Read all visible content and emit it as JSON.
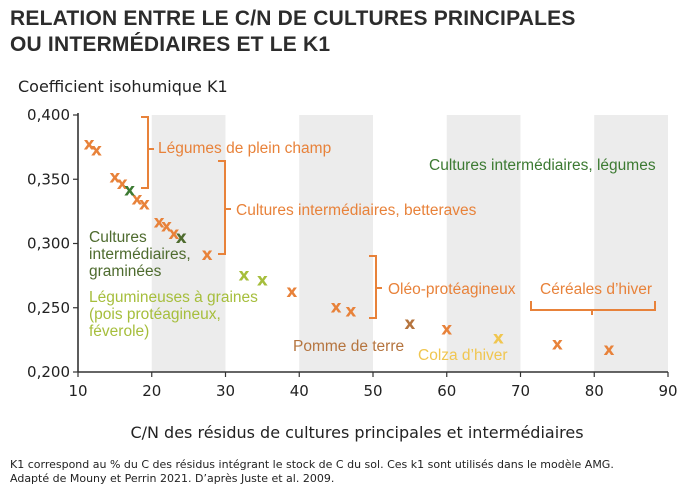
{
  "title_lines": [
    "RELATION ENTRE LE C/N DE CULTURES PRINCIPALES",
    "OU INTERMÉDIAIRES ET LE K1"
  ],
  "footnote_lines": [
    "K1 correspond au % du C des résidus intégrant le stock de C du sol. Ces k1 sont utilisés dans le modèle AMG.",
    "Adapté de Mouny et Perrin 2021. D’après Juste et al. 2009."
  ],
  "colors": {
    "legumes": "#e8823a",
    "betteraves": "#e8823a",
    "graminees": "#4e6b2e",
    "legumineuses": "#a6be3c",
    "oleo": "#e8823a",
    "pomme_de_terre": "#b5743e",
    "colza": "#f0c650",
    "cereales": "#e8823a",
    "ci_legumes": "#3c7a32",
    "band": "#ececec",
    "axis": "#333333"
  },
  "chart_data": {
    "type": "scatter",
    "xlabel": "C/N des résidus de cultures principales et intermédiaires",
    "ylabel": "Coefficient isohumique K1",
    "xlim": [
      10,
      90
    ],
    "ylim": [
      0.2,
      0.4
    ],
    "x_ticks": [
      "10",
      "20",
      "30",
      "40",
      "50",
      "60",
      "70",
      "80",
      "90"
    ],
    "y_ticks": [
      "0,200",
      "0,250",
      "0,300",
      "0,350",
      "0,400"
    ],
    "shaded_bands_x": [
      [
        20,
        30
      ],
      [
        40,
        50
      ],
      [
        60,
        70
      ],
      [
        80,
        90
      ]
    ],
    "marker_glyph": "x",
    "series": [
      {
        "name": "Légumes de plein champ",
        "color_key": "legumes",
        "points": [
          [
            11.5,
            0.378
          ],
          [
            12.5,
            0.373
          ],
          [
            15,
            0.352
          ],
          [
            16,
            0.347
          ],
          [
            18,
            0.335
          ],
          [
            19,
            0.331
          ]
        ]
      },
      {
        "name": "Cultures intermédiaires, légumes",
        "color_key": "ci_legumes",
        "points": [
          [
            17,
            0.342
          ]
        ]
      },
      {
        "name": "Cultures intermédiaires, betteraves",
        "color_key": "betteraves",
        "points": [
          [
            21,
            0.317
          ],
          [
            22,
            0.314
          ],
          [
            23,
            0.308
          ],
          [
            27.5,
            0.292
          ]
        ]
      },
      {
        "name": "Cultures intermédiaires, graminées",
        "color_key": "graminees",
        "points": [
          [
            24,
            0.305
          ]
        ]
      },
      {
        "name": "Légumineuses à graines (pois protéagineux, féverole)",
        "color_key": "legumineuses",
        "points": [
          [
            32.5,
            0.276
          ],
          [
            35,
            0.272
          ]
        ]
      },
      {
        "name": "Oléo-protéagineux",
        "color_key": "oleo",
        "points": [
          [
            39,
            0.263
          ],
          [
            45,
            0.251
          ],
          [
            47,
            0.248
          ],
          [
            60,
            0.234
          ]
        ]
      },
      {
        "name": "Pomme de terre",
        "color_key": "pomme_de_terre",
        "points": [
          [
            55,
            0.238
          ]
        ]
      },
      {
        "name": "Colza d’hiver",
        "color_key": "colza",
        "points": [
          [
            67,
            0.227
          ]
        ]
      },
      {
        "name": "Céréales d’hiver",
        "color_key": "cereales",
        "points": [
          [
            75,
            0.222
          ],
          [
            82,
            0.218
          ]
        ]
      }
    ],
    "annotations": {
      "legumes": "Légumes de plein champ",
      "ci_legumes": "Cultures intermédiaires, légumes",
      "betteraves": "Cultures intermédiaires, betteraves",
      "graminees_lines": [
        "Cultures",
        "intermédiaires,",
        "graminées"
      ],
      "legumineuses_lines": [
        "Légumineuses à graines",
        "(pois protéagineux,",
        "féverole)"
      ],
      "oleo": "Oléo-protéagineux",
      "pomme_de_terre": "Pomme de terre",
      "colza": "Colza d’hiver",
      "cereales": "Céréales d’hiver"
    }
  }
}
